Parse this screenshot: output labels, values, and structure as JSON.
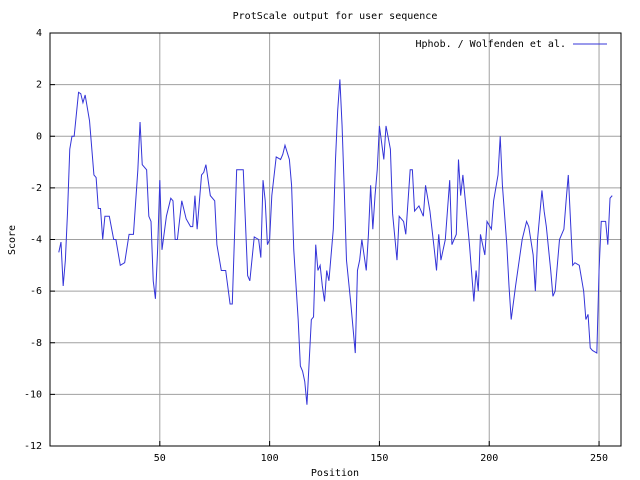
{
  "chart_data": {
    "type": "line",
    "title": "ProtScale output for user sequence",
    "x_label": "Position",
    "y_label": "Score",
    "x": [
      4,
      5,
      6,
      7,
      8,
      9,
      10,
      11,
      13,
      14,
      15,
      16,
      18,
      20,
      21,
      22,
      23,
      24,
      25,
      27,
      29,
      30,
      32,
      34,
      36,
      38,
      40,
      41,
      42,
      44,
      45,
      46,
      47,
      48,
      49,
      50,
      51,
      53,
      55,
      56,
      57,
      58,
      60,
      62,
      64,
      65,
      66,
      67,
      69,
      70,
      71,
      73,
      75,
      76,
      78,
      80,
      82,
      83,
      85,
      88,
      90,
      91,
      93,
      95,
      96,
      97,
      98,
      99,
      100,
      101,
      103,
      105,
      106,
      107,
      109,
      110,
      111,
      113,
      114,
      115,
      116,
      117,
      119,
      120,
      121,
      122,
      123,
      124,
      125,
      126,
      127,
      129,
      130,
      131,
      132,
      133,
      134,
      135,
      137,
      139,
      140,
      141,
      142,
      144,
      145,
      146,
      147,
      148,
      149,
      150,
      152,
      153,
      155,
      156,
      158,
      159,
      161,
      162,
      164,
      165,
      166,
      168,
      170,
      171,
      173,
      175,
      176,
      177,
      178,
      180,
      182,
      183,
      185,
      186,
      187,
      188,
      190,
      191,
      193,
      194,
      195,
      196,
      198,
      199,
      201,
      202,
      204,
      205,
      206,
      208,
      209,
      210,
      212,
      214,
      215,
      217,
      218,
      220,
      221,
      222,
      224,
      225,
      226,
      228,
      229,
      230,
      232,
      234,
      235,
      236,
      238,
      239,
      241,
      243,
      244,
      245,
      246,
      247,
      249,
      250,
      251,
      253,
      254,
      255,
      256
    ],
    "series": [
      {
        "name": "Hphob. / Wolfenden et al.",
        "color": "#3434d8",
        "values": [
          -4.5,
          -4.1,
          -5.8,
          -4.8,
          -2.9,
          -0.5,
          0,
          0,
          1.7,
          1.65,
          1.3,
          1.6,
          0.6,
          -1.5,
          -1.6,
          -2.8,
          -2.8,
          -4.0,
          -3.1,
          -3.1,
          -4.0,
          -4.0,
          -5.0,
          -4.9,
          -3.8,
          -3.8,
          -1.3,
          0.55,
          -1.1,
          -1.3,
          -3.1,
          -3.3,
          -5.6,
          -6.3,
          -4.4,
          -1.7,
          -4.4,
          -3.1,
          -2.4,
          -2.5,
          -4.0,
          -4.0,
          -2.5,
          -3.2,
          -3.5,
          -3.5,
          -2.3,
          -3.6,
          -1.5,
          -1.4,
          -1.1,
          -2.3,
          -2.5,
          -4.2,
          -5.2,
          -5.2,
          -6.5,
          -6.5,
          -1.3,
          -1.3,
          -5.4,
          -5.6,
          -3.9,
          -4.0,
          -4.7,
          -1.7,
          -2.5,
          -4.2,
          -4.0,
          -2.3,
          -0.8,
          -0.9,
          -0.7,
          -0.35,
          -0.9,
          -1.9,
          -4.4,
          -7.1,
          -8.9,
          -9.1,
          -9.5,
          -10.4,
          -7.1,
          -7.0,
          -4.2,
          -5.2,
          -5.0,
          -5.8,
          -6.4,
          -5.2,
          -5.6,
          -3.6,
          -0.9,
          1.0,
          2.2,
          0.4,
          -2.1,
          -4.8,
          -6.5,
          -8.4,
          -5.2,
          -4.8,
          -4.0,
          -5.2,
          -3.8,
          -1.9,
          -3.6,
          -2.3,
          -1.3,
          0.4,
          -0.9,
          0.4,
          -0.5,
          -3.0,
          -4.8,
          -3.1,
          -3.3,
          -3.8,
          -1.3,
          -1.3,
          -2.9,
          -2.7,
          -3.1,
          -1.9,
          -2.9,
          -4.4,
          -5.2,
          -3.8,
          -4.8,
          -4.0,
          -1.7,
          -4.2,
          -3.8,
          -0.9,
          -2.3,
          -1.5,
          -3.3,
          -4.2,
          -6.4,
          -5.2,
          -6.0,
          -3.8,
          -4.6,
          -3.3,
          -3.6,
          -2.5,
          -1.5,
          0,
          -1.9,
          -4.2,
          -5.8,
          -7.1,
          -5.8,
          -4.6,
          -4.0,
          -3.3,
          -3.5,
          -4.6,
          -6.0,
          -4.0,
          -2.1,
          -2.9,
          -3.5,
          -5.2,
          -6.2,
          -6.0,
          -4.0,
          -3.6,
          -2.5,
          -1.5,
          -5.0,
          -4.9,
          -5.0,
          -6.0,
          -7.1,
          -6.9,
          -8.2,
          -8.3,
          -8.4,
          -5.2,
          -3.3,
          -3.3,
          -4.2,
          -2.4,
          -2.3
        ]
      }
    ],
    "xlim": [
      0,
      260
    ],
    "ylim": [
      -12,
      4
    ],
    "xticks": [
      50,
      100,
      150,
      200,
      250
    ],
    "yticks": [
      -12,
      -10,
      -8,
      -6,
      -4,
      -2,
      0,
      2,
      4
    ],
    "grid": true,
    "legend": "top-right"
  }
}
